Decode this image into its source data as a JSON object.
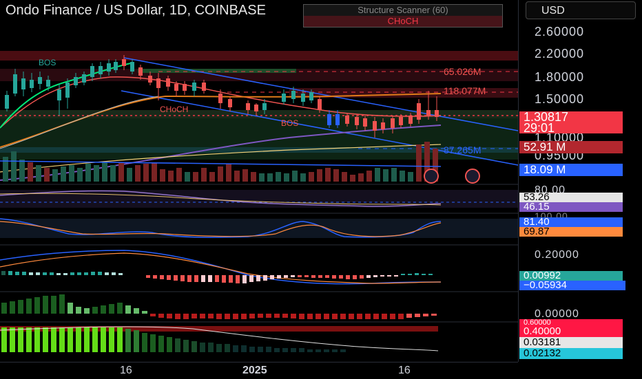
{
  "header": {
    "title": "Ondo Finance / US Dollar, 1D, COINBASE",
    "currency": "USD"
  },
  "scanner": {
    "title": "Structure Scanner (60)",
    "signal": "CHoCH"
  },
  "chart_labels": {
    "bos_top": "BOS",
    "choch_left": "CHoCH",
    "bos_right": "BOS",
    "vol_65": "65.026M",
    "vol_118": "118.077M",
    "vol_87": "87.265M"
  },
  "price_axis": {
    "ticks": [
      "2.60000",
      "2.20000",
      "1.80000",
      "1.50000",
      "1.10000",
      "0.95000"
    ]
  },
  "price_tags": {
    "last_price": "1.30817",
    "countdown": "29:01",
    "volume": "52.91 M",
    "volume_ma": "18.09 M"
  },
  "rsi_pane": {
    "tick": "80.00",
    "value_a": "53.26",
    "value_b": "46.15"
  },
  "stoch_pane": {
    "tick": "100.00",
    "k": "81.40",
    "d": "69.87"
  },
  "macd_pane": {
    "tick": "0.20000",
    "histogram": "0.00992",
    "signal": "−0.05934"
  },
  "osc_pane": {
    "tick": "0.00000"
  },
  "bottom_pane": {
    "tick": "0.60000",
    "value_a": "0.40000",
    "value_b": "0.03181",
    "value_c": "0.02132"
  },
  "time_axis": {
    "labels": [
      "16",
      "2025",
      "16"
    ]
  },
  "colors": {
    "bull": "#26a69a",
    "bear": "#ef5350",
    "accent_blue": "#2962ff",
    "last_price": "#f23645"
  }
}
